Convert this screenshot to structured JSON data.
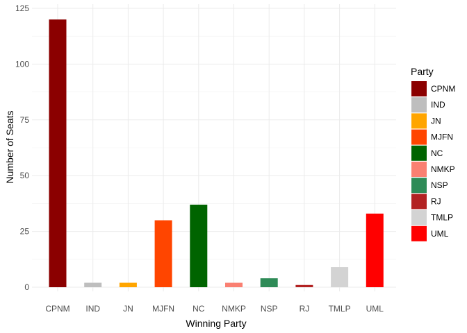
{
  "chart_data": {
    "type": "bar",
    "title": "",
    "xlabel": "Winning Party",
    "ylabel": "Number of Seats",
    "categories": [
      "CPNM",
      "IND",
      "JN",
      "MJFN",
      "NC",
      "NMKP",
      "NSP",
      "RJ",
      "TMLP",
      "UML"
    ],
    "values": [
      120,
      2,
      2,
      30,
      37,
      2,
      4,
      1,
      9,
      33
    ],
    "colors": [
      "#8B0000",
      "#BEBEBE",
      "#FFA500",
      "#FF4500",
      "#006400",
      "#FA8072",
      "#2E8B57",
      "#B22222",
      "#D3D3D3",
      "#FF0000"
    ],
    "ylim": [
      0,
      125
    ],
    "yticks": [
      0,
      25,
      50,
      75,
      100,
      125
    ],
    "grid": true,
    "legend": {
      "title": "Party",
      "position": "right",
      "entries": [
        "CPNM",
        "IND",
        "JN",
        "MJFN",
        "NC",
        "NMKP",
        "NSP",
        "RJ",
        "TMLP",
        "UML"
      ]
    }
  }
}
